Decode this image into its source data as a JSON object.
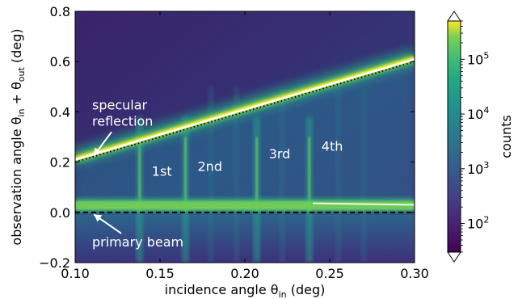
{
  "chart_data": {
    "type": "heatmap",
    "xlabel_main": "incidence angle θ",
    "xlabel_sub": "in",
    "xlabel_tail": " (deg)",
    "ylabel_main": "observation angle θ",
    "ylabel_sub1": "in",
    "ylabel_mid": " + θ",
    "ylabel_sub2": "out",
    "ylabel_tail": " (deg)",
    "xlim": [
      0.1,
      0.3
    ],
    "ylim": [
      -0.2,
      0.8
    ],
    "x_ticks": [
      {
        "value": 0.1,
        "label": "0.10"
      },
      {
        "value": 0.15,
        "label": "0.15"
      },
      {
        "value": 0.2,
        "label": "0.20"
      },
      {
        "value": 0.25,
        "label": "0.25"
      },
      {
        "value": 0.3,
        "label": "0.30"
      }
    ],
    "y_ticks": [
      {
        "value": -0.2,
        "label": "−0.2"
      },
      {
        "value": 0.0,
        "label": "0.0"
      },
      {
        "value": 0.2,
        "label": "0.2"
      },
      {
        "value": 0.4,
        "label": "0.4"
      },
      {
        "value": 0.6,
        "label": "0.6"
      },
      {
        "value": 0.8,
        "label": "0.8"
      }
    ],
    "colorbar": {
      "label": "counts",
      "scale": "log",
      "range": [
        30,
        500000
      ],
      "ticks": [
        {
          "value": 100,
          "label": "10",
          "exp": "2"
        },
        {
          "value": 1000,
          "label": "10",
          "exp": "3"
        },
        {
          "value": 10000,
          "label": "10",
          "exp": "4"
        },
        {
          "value": 100000,
          "label": "10",
          "exp": "5"
        }
      ]
    },
    "specular_line": {
      "style": "dotted",
      "points": [
        [
          0.1,
          0.2
        ],
        [
          0.3,
          0.6
        ]
      ]
    },
    "primary_beam_line": {
      "style": "dashed",
      "y": 0.0
    },
    "diffraction_orders": [
      {
        "label": "1st",
        "x": 0.138
      },
      {
        "label": "2nd",
        "x": 0.165
      },
      {
        "label": "3rd",
        "x": 0.207
      },
      {
        "label": "4th",
        "x": 0.238
      }
    ],
    "annotations": [
      {
        "name": "specular",
        "lines": [
          "specular",
          "reflection"
        ],
        "x": 0.11,
        "y": 0.41,
        "arrow_to": [
          0.111,
          0.225
        ]
      },
      {
        "name": "primary",
        "lines": [
          "primary beam"
        ],
        "x": 0.11,
        "y": -0.135,
        "arrow_to": [
          0.111,
          -0.008
        ]
      }
    ]
  }
}
